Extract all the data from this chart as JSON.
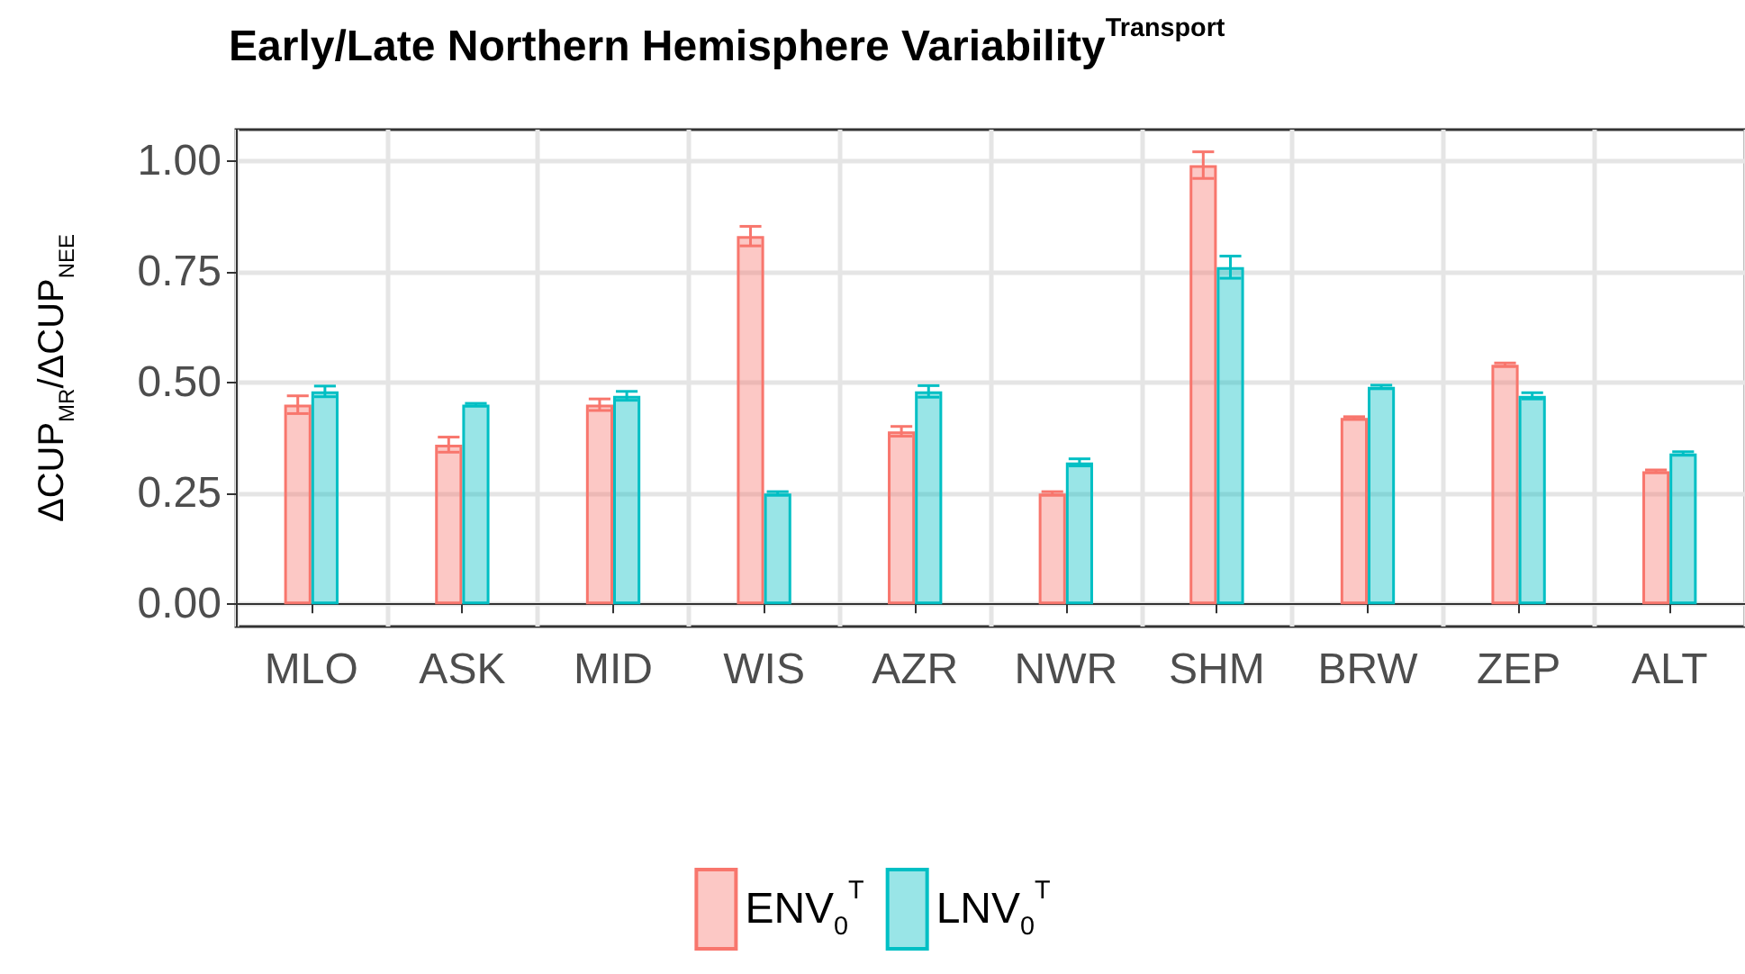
{
  "chart_data": {
    "type": "bar",
    "title": "Early/Late Northern Hemisphere Variability$^{Transport}$",
    "ylabel": "ΔCUP$_{MR}$/ΔCUP$_{NEE}$",
    "categories": [
      "MLO",
      "ASK",
      "MID",
      "WIS",
      "AZR",
      "NWR",
      "SHM",
      "BRW",
      "ZEP",
      "ALT"
    ],
    "series": [
      {
        "name": "ENV$_{0}$$^{T}$",
        "color": "#f8766d",
        "values": [
          0.45,
          0.36,
          0.45,
          0.83,
          0.39,
          0.25,
          0.99,
          0.42,
          0.54,
          0.3
        ],
        "errors": [
          0.02,
          0.017,
          0.013,
          0.022,
          0.011,
          0.004,
          0.03,
          0.003,
          0.004,
          0.003
        ]
      },
      {
        "name": "LNV$_{0}$$^{T}$",
        "color": "#00bfc4",
        "values": [
          0.48,
          0.45,
          0.47,
          0.25,
          0.48,
          0.32,
          0.76,
          0.49,
          0.47,
          0.34
        ],
        "errors": [
          0.012,
          0.003,
          0.01,
          0.004,
          0.013,
          0.008,
          0.025,
          0.004,
          0.007,
          0.004
        ]
      }
    ],
    "ylim": [
      -0.05,
      1.07
    ],
    "yticks": [
      {
        "value": 0,
        "label": "0.00"
      },
      {
        "value": 0.25,
        "label": "0.25"
      },
      {
        "value": 0.5,
        "label": "0.50"
      },
      {
        "value": 0.75,
        "label": "0.75"
      },
      {
        "value": 1,
        "label": "1.00"
      }
    ],
    "grid": true,
    "legend": "bottom"
  }
}
